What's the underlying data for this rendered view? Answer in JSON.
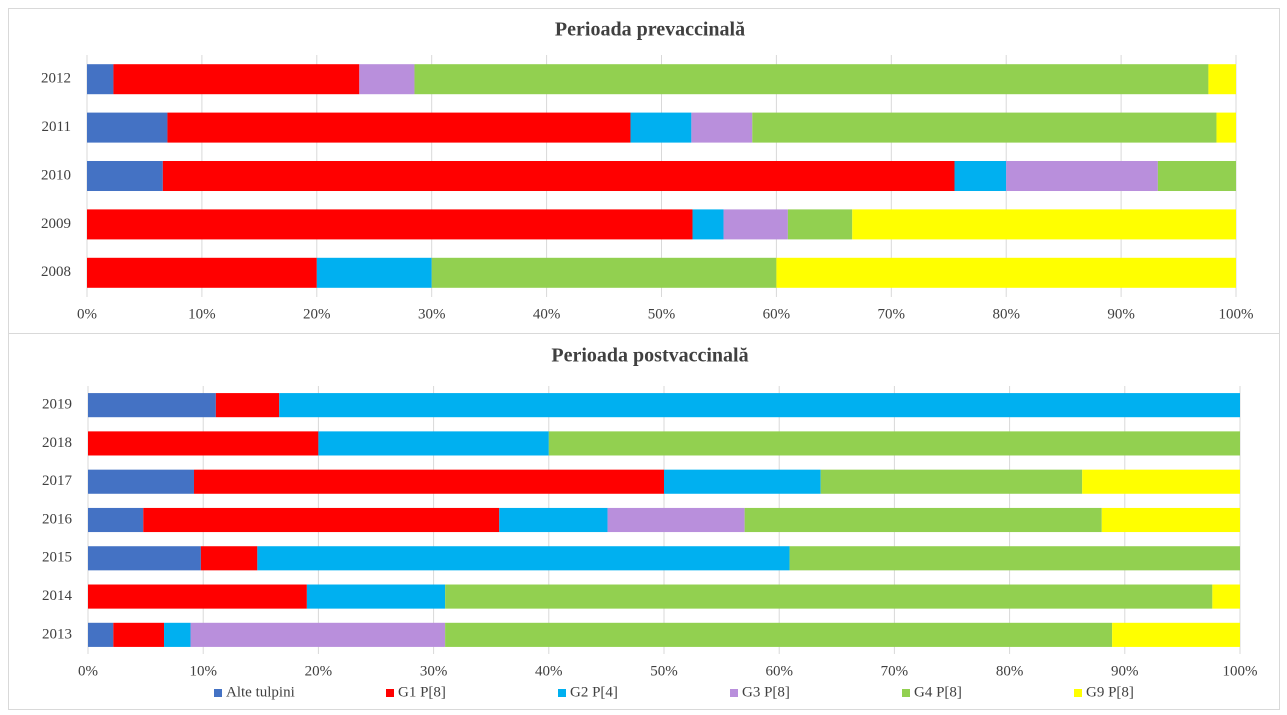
{
  "chart_data": [
    {
      "type": "stacked-bar-horizontal",
      "title": "Perioada prevaccinală",
      "categories": [
        "2008",
        "2009",
        "2010",
        "2011",
        "2012"
      ],
      "series": [
        {
          "color": "#4472c4",
          "values": [
            0,
            0,
            6.6,
            7.0,
            2.3
          ]
        },
        {
          "color": "#ff0000",
          "values": [
            20,
            52.7,
            68.9,
            40.3,
            21.4
          ]
        },
        {
          "color": "#00b0f0",
          "values": [
            10,
            2.7,
            4.5,
            5.3,
            0
          ]
        },
        {
          "color": "#b98fdc",
          "values": [
            0,
            5.6,
            13.2,
            5.3,
            4.8
          ]
        },
        {
          "color": "#92d050",
          "values": [
            30,
            5.6,
            6.8,
            40.4,
            69.1
          ]
        },
        {
          "color": "#ffff00",
          "values": [
            40,
            33.4,
            0,
            1.7,
            2.4
          ]
        }
      ],
      "xlim": [
        0,
        100
      ],
      "xticks": [
        {
          "value": 0,
          "label": "0%"
        },
        {
          "value": 10,
          "label": "10%"
        },
        {
          "value": 20,
          "label": "20%"
        },
        {
          "value": 30,
          "label": "30%"
        },
        {
          "value": 40,
          "label": "40%"
        },
        {
          "value": 50,
          "label": "50%"
        },
        {
          "value": 60,
          "label": "60%"
        },
        {
          "value": 70,
          "label": "70%"
        },
        {
          "value": 80,
          "label": "80%"
        },
        {
          "value": 90,
          "label": "90%"
        },
        {
          "value": 100,
          "label": "100%"
        }
      ],
      "grid": true
    },
    {
      "type": "stacked-bar-horizontal",
      "title": "Perioada postvaccinală",
      "categories": [
        "2013",
        "2014",
        "2015",
        "2016",
        "2017",
        "2018",
        "2019"
      ],
      "series": [
        {
          "name": "Alte tulpini",
          "color": "#4472c4",
          "values": [
            2.2,
            0,
            9.8,
            4.8,
            9.2,
            0,
            11.1
          ]
        },
        {
          "name": "G1 P[8]",
          "color": "#ff0000",
          "values": [
            4.4,
            19.0,
            4.9,
            30.9,
            40.8,
            20,
            5.5
          ]
        },
        {
          "name": "G2 P[4]",
          "color": "#00b0f0",
          "values": [
            2.3,
            12,
            46.2,
            9.4,
            13.6,
            20,
            83.4
          ]
        },
        {
          "name": "G3 P[8]",
          "color": "#b98fdc",
          "values": [
            22.1,
            0,
            0,
            11.9,
            0,
            0,
            0
          ]
        },
        {
          "name": "G4 P[8]",
          "color": "#92d050",
          "values": [
            57.9,
            66.6,
            39.1,
            31,
            22.7,
            60,
            0
          ]
        },
        {
          "name": "G9 P[8]",
          "color": "#ffff00",
          "values": [
            11.1,
            2.4,
            0,
            12,
            13.7,
            0,
            0
          ]
        }
      ],
      "xlim": [
        0,
        100
      ],
      "xticks": [
        {
          "value": 0,
          "label": "0%"
        },
        {
          "value": 10,
          "label": "10%"
        },
        {
          "value": 20,
          "label": "20%"
        },
        {
          "value": 30,
          "label": "30%"
        },
        {
          "value": 40,
          "label": "40%"
        },
        {
          "value": 50,
          "label": "50%"
        },
        {
          "value": 60,
          "label": "60%"
        },
        {
          "value": 70,
          "label": "70%"
        },
        {
          "value": 80,
          "label": "80%"
        },
        {
          "value": 90,
          "label": "90%"
        },
        {
          "value": 100,
          "label": "100%"
        }
      ],
      "grid": true,
      "legend": "bottom"
    }
  ]
}
